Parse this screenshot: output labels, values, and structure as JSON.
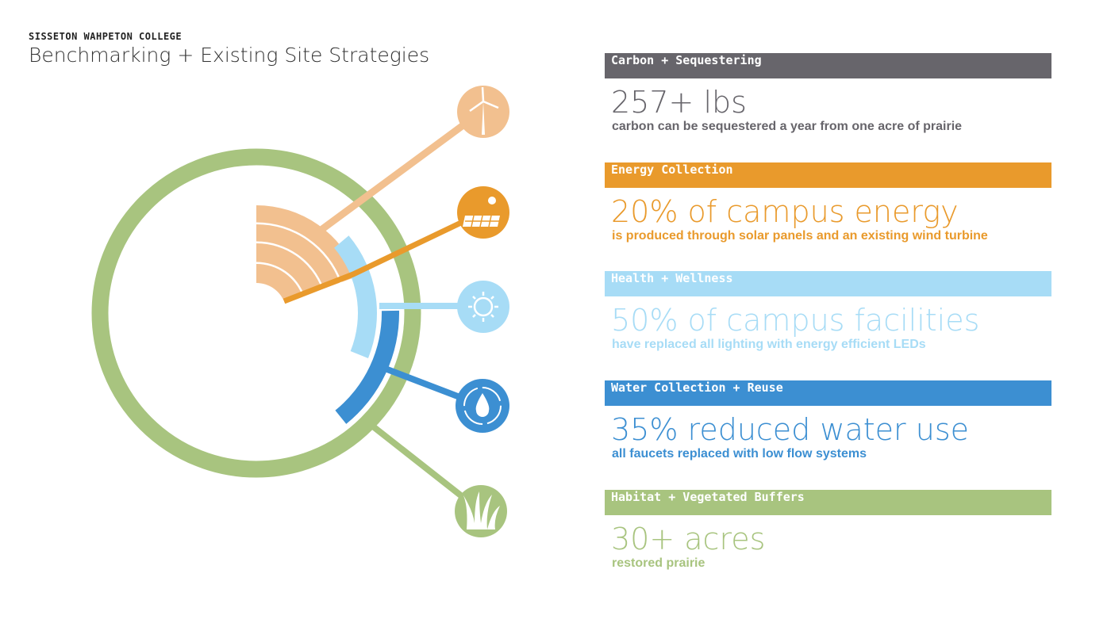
{
  "header": {
    "organization": "SISSETON WAHPETON COLLEGE",
    "title": "Benchmarking + Existing Site Strategies"
  },
  "diagram": {
    "icons": [
      "wind-turbine-icon",
      "solar-panel-icon",
      "sun-icon",
      "water-recycle-icon",
      "grass-icon"
    ]
  },
  "panels": [
    {
      "label": "Carbon + Sequestering",
      "value": "257+ lbs",
      "detail": "carbon can be sequestered a year from one acre of prairie",
      "color": "#67656b"
    },
    {
      "label": "Energy Collection",
      "value": "20% of campus energy",
      "detail": "is produced through solar panels and an existing wind turbine",
      "color": "#e99a2c"
    },
    {
      "label": "Health + Wellness",
      "value": "50% of campus facilities",
      "detail": "have replaced all lighting with energy efficient LEDs",
      "color": "#a7dcf6"
    },
    {
      "label": "Water Collection + Reuse",
      "value": "35% reduced water use",
      "detail": "all faucets replaced with low flow systems",
      "color": "#3c8fd2"
    },
    {
      "label": "Habitat + Vegetated Buffers",
      "value": "30+ acres",
      "detail": "restored prairie",
      "color": "#a8c47f"
    }
  ]
}
